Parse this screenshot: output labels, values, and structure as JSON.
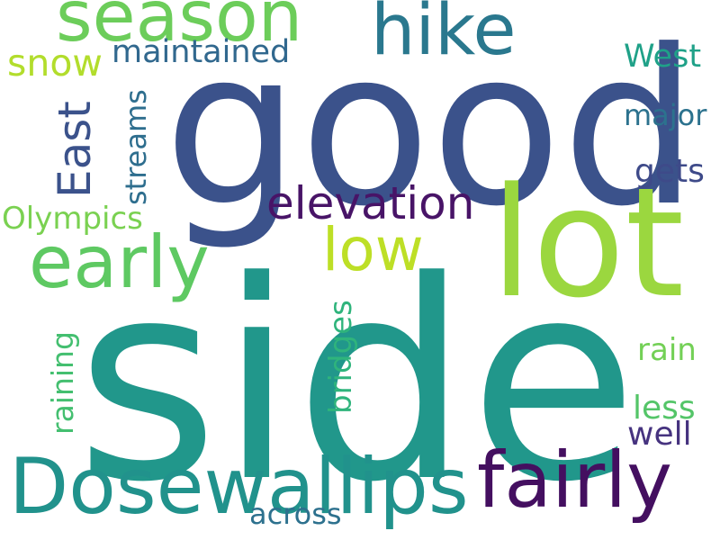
{
  "word_cloud": {
    "background_color": "#ffffff",
    "words": [
      {
        "id": "side",
        "text": "side",
        "color": "#21978b"
      },
      {
        "id": "good",
        "text": "good",
        "color": "#3b528b"
      },
      {
        "id": "lot",
        "text": "lot",
        "color": "#9bd73f"
      },
      {
        "id": "dosewallips",
        "text": "Dosewallips",
        "color": "#21928c"
      },
      {
        "id": "fairly",
        "text": "fairly",
        "color": "#440f60"
      },
      {
        "id": "early",
        "text": "early",
        "color": "#5ec962"
      },
      {
        "id": "season",
        "text": "season",
        "color": "#6ccd5a"
      },
      {
        "id": "hike",
        "text": "hike",
        "color": "#2a788e"
      },
      {
        "id": "low",
        "text": "low",
        "color": "#bddf26"
      },
      {
        "id": "elevation",
        "text": "elevation",
        "color": "#481467"
      },
      {
        "id": "snow",
        "text": "snow",
        "color": "#b2dd2c"
      },
      {
        "id": "maintained",
        "text": "maintained",
        "color": "#31688e"
      },
      {
        "id": "olympics",
        "text": "Olympics",
        "color": "#7ad151"
      },
      {
        "id": "west",
        "text": "West",
        "color": "#1fa188"
      },
      {
        "id": "major",
        "text": "major",
        "color": "#2c728e"
      },
      {
        "id": "gets",
        "text": "gets",
        "color": "#3e4a89"
      },
      {
        "id": "rain",
        "text": "rain",
        "color": "#73d056"
      },
      {
        "id": "less",
        "text": "less",
        "color": "#54c568"
      },
      {
        "id": "well",
        "text": "well",
        "color": "#46337f"
      },
      {
        "id": "across",
        "text": "across",
        "color": "#2d718e"
      },
      {
        "id": "east",
        "text": "East",
        "color": "#3b528b"
      },
      {
        "id": "streams",
        "text": "streams",
        "color": "#2e6e8e"
      },
      {
        "id": "bridges",
        "text": "bridges",
        "color": "#2fb47c"
      },
      {
        "id": "raining",
        "text": "raining",
        "color": "#44bf70"
      }
    ]
  }
}
